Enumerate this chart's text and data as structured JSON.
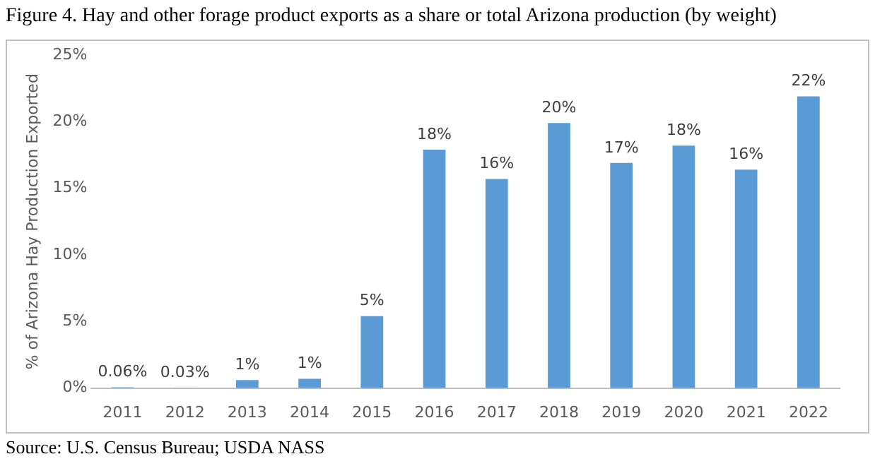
{
  "chart_data": {
    "type": "bar",
    "title": "Figure 4. Hay and other forage product exports as a share or total Arizona production (by weight)",
    "ylabel": "% of Arizona Hay Production Exported",
    "categories": [
      "2011",
      "2012",
      "2013",
      "2014",
      "2015",
      "2016",
      "2017",
      "2018",
      "2019",
      "2020",
      "2021",
      "2022"
    ],
    "values": [
      0.06,
      0.03,
      0.6,
      0.7,
      5.4,
      17.9,
      15.7,
      19.9,
      16.9,
      18.2,
      16.4,
      21.9
    ],
    "value_labels": [
      "0.06%",
      "0.03%",
      "1%",
      "1%",
      "5%",
      "18%",
      "16%",
      "20%",
      "17%",
      "18%",
      "16%",
      "22%"
    ],
    "color": "#5b9bd5",
    "ylim": [
      0,
      25
    ],
    "yticks": [
      {
        "value": 0,
        "label": "0%"
      },
      {
        "value": 5,
        "label": "5%"
      },
      {
        "value": 10,
        "label": "10%"
      },
      {
        "value": 15,
        "label": "15%"
      },
      {
        "value": 20,
        "label": "20%"
      },
      {
        "value": 25,
        "label": "25%"
      }
    ],
    "grid": false,
    "legend": false,
    "annotations": [
      "Source: U.S. Census Bureau; USDA NASS"
    ]
  }
}
